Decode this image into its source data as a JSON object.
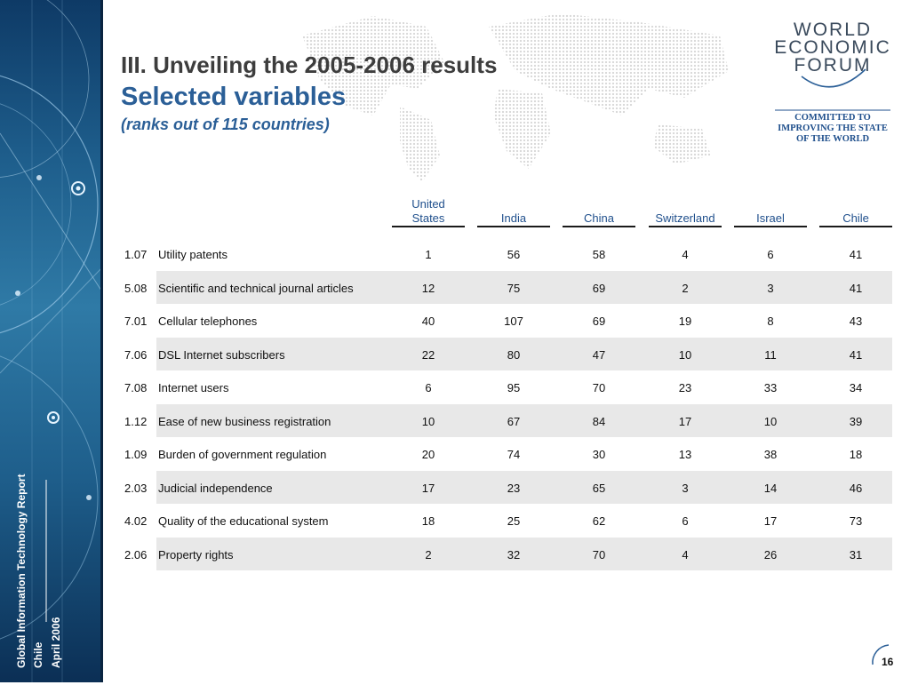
{
  "sidebar": {
    "report_name": "Global Information Technology Report",
    "country": "Chile",
    "date": "April 2006"
  },
  "title": {
    "line1": "III. Unveiling the 2005-2006 results",
    "line2": "Selected variables",
    "line3": "(ranks out of 115 countries)"
  },
  "logo": {
    "words": [
      "WORLD",
      "ECONOMIC",
      "FORUM"
    ],
    "tagline": [
      "COMMITTED TO",
      "IMPROVING THE STATE",
      "OF THE WORLD"
    ]
  },
  "table": {
    "headers": [
      "United States",
      "India",
      "China",
      "Switzerland",
      "Israel",
      "Chile"
    ],
    "header_us_lines": [
      "United",
      "States"
    ],
    "rows": [
      {
        "code": "1.07",
        "label": "Utility patents",
        "values": [
          "1",
          "56",
          "58",
          "4",
          "6",
          "41"
        ]
      },
      {
        "code": "5.08",
        "label": "Scientific and technical journal articles",
        "values": [
          "12",
          "75",
          "69",
          "2",
          "3",
          "41"
        ]
      },
      {
        "code": "7.01",
        "label": "Cellular telephones",
        "values": [
          "40",
          "107",
          "69",
          "19",
          "8",
          "43"
        ]
      },
      {
        "code": "7.06",
        "label": "DSL Internet subscribers",
        "values": [
          "22",
          "80",
          "47",
          "10",
          "11",
          "41"
        ]
      },
      {
        "code": "7.08",
        "label": "Internet users",
        "values": [
          "6",
          "95",
          "70",
          "23",
          "33",
          "34"
        ]
      },
      {
        "code": "1.12",
        "label": "Ease of new business registration",
        "values": [
          "10",
          "67",
          "84",
          "17",
          "10",
          "39"
        ]
      },
      {
        "code": "1.09",
        "label": "Burden of government regulation",
        "values": [
          "20",
          "74",
          "30",
          "13",
          "38",
          "18"
        ]
      },
      {
        "code": "2.03",
        "label": "Judicial independence",
        "values": [
          "17",
          "23",
          "65",
          "3",
          "14",
          "46"
        ]
      },
      {
        "code": "4.02",
        "label": "Quality of the educational system",
        "values": [
          "18",
          "25",
          "62",
          "6",
          "17",
          "73"
        ]
      },
      {
        "code": "2.06",
        "label": "Property rights",
        "values": [
          "2",
          "32",
          "70",
          "4",
          "26",
          "31"
        ]
      }
    ]
  },
  "page_number": "16",
  "colors": {
    "title_gray": "#3d3d3d",
    "title_blue": "#2b5f97",
    "header_blue": "#1f4f8c",
    "row_shade": "#e8e8e8",
    "sidebar_blue": "#1d5c8a"
  }
}
